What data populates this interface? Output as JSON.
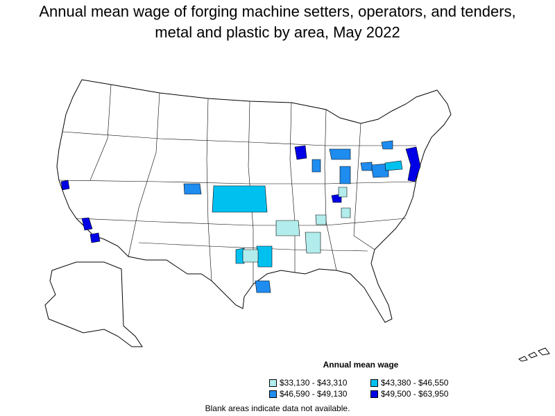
{
  "title_line1": "Annual mean wage of forging machine setters, operators, and tenders,",
  "title_line2": "metal and plastic by area, May 2022",
  "legend": {
    "title": "Annual mean wage",
    "items": [
      {
        "label": "$33,130 - $43,310",
        "color": "#b2ecec"
      },
      {
        "label": "$43,380 - $46,550",
        "color": "#00c0f0"
      },
      {
        "label": "$46,590 - $49,130",
        "color": "#1f8cf0"
      },
      {
        "label": "$49,500 - $63,950",
        "color": "#0000e6"
      }
    ]
  },
  "footnote": "Blank areas indicate data not available.",
  "colors": {
    "land": "#ffffff",
    "border": "#000000"
  }
}
